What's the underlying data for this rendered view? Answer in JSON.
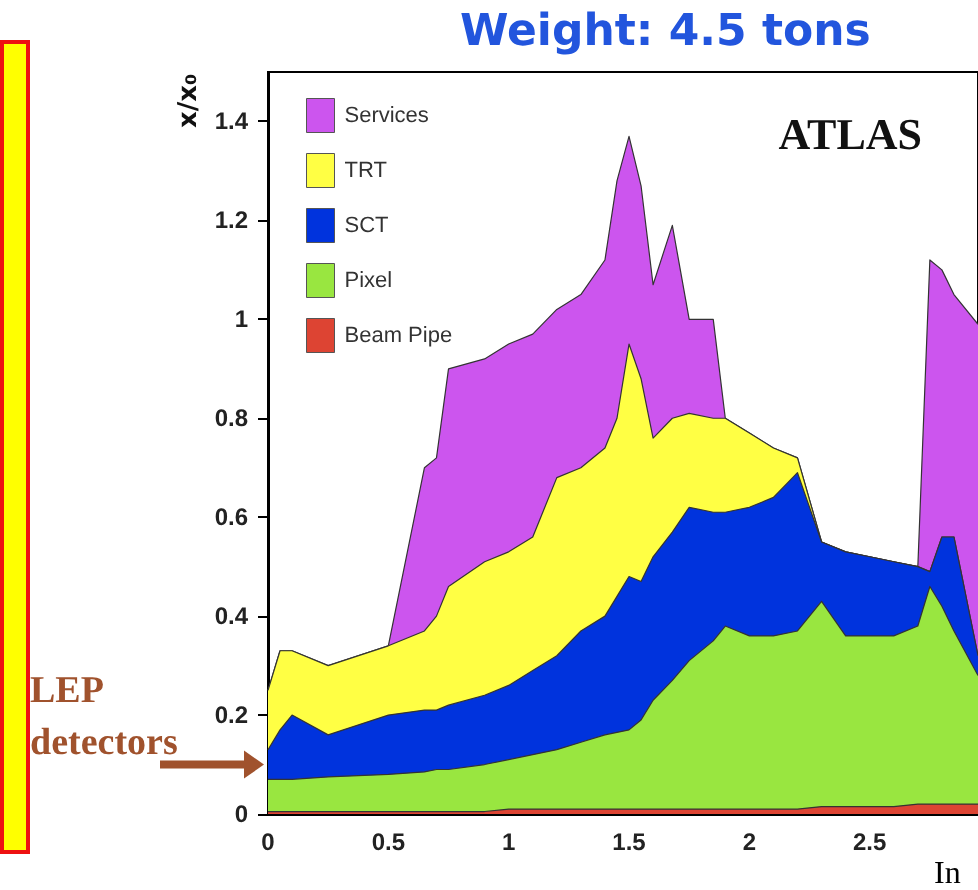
{
  "chart_data": {
    "type": "area",
    "title": "Weight: 4.5 tons",
    "xlabel": "In",
    "ylabel": "x/x₀",
    "annotations": [
      "ATLAS",
      {
        "text": "LEP detectors",
        "x": 0,
        "y": 0.1
      }
    ],
    "stacked": true,
    "legend": "top left",
    "x": [
      0,
      0.05,
      0.1,
      0.25,
      0.5,
      0.65,
      0.7,
      0.75,
      0.9,
      1.0,
      1.1,
      1.2,
      1.3,
      1.4,
      1.45,
      1.5,
      1.55,
      1.6,
      1.68,
      1.75,
      1.85,
      1.9,
      2.0,
      2.1,
      2.2,
      2.3,
      2.4,
      2.5,
      2.6,
      2.7,
      2.75,
      2.8,
      2.85,
      2.95
    ],
    "series": [
      {
        "name": "Beam Pipe",
        "color": "#dd4433",
        "values": [
          0.005,
          0.005,
          0.005,
          0.005,
          0.005,
          0.005,
          0.005,
          0.005,
          0.005,
          0.01,
          0.01,
          0.01,
          0.01,
          0.01,
          0.01,
          0.01,
          0.01,
          0.01,
          0.01,
          0.01,
          0.01,
          0.01,
          0.01,
          0.01,
          0.01,
          0.015,
          0.015,
          0.015,
          0.015,
          0.02,
          0.02,
          0.02,
          0.02,
          0.02
        ]
      },
      {
        "name": "Pixel",
        "color": "#99e640",
        "values": [
          0.065,
          0.065,
          0.065,
          0.07,
          0.075,
          0.08,
          0.085,
          0.085,
          0.095,
          0.1,
          0.11,
          0.12,
          0.135,
          0.15,
          0.155,
          0.16,
          0.18,
          0.22,
          0.26,
          0.3,
          0.34,
          0.37,
          0.35,
          0.35,
          0.36,
          0.415,
          0.345,
          0.345,
          0.345,
          0.36,
          0.44,
          0.4,
          0.35,
          0.26
        ]
      },
      {
        "name": "SCT",
        "color": "#0033dd",
        "values": [
          0.06,
          0.1,
          0.13,
          0.085,
          0.12,
          0.125,
          0.12,
          0.13,
          0.14,
          0.15,
          0.17,
          0.19,
          0.225,
          0.24,
          0.275,
          0.31,
          0.28,
          0.29,
          0.3,
          0.31,
          0.26,
          0.23,
          0.26,
          0.28,
          0.32,
          0.12,
          0.17,
          0.16,
          0.15,
          0.12,
          0.03,
          0.14,
          0.19,
          0.04
        ]
      },
      {
        "name": "TRT",
        "color": "#ffff44",
        "values": [
          0.12,
          0.16,
          0.13,
          0.14,
          0.14,
          0.16,
          0.19,
          0.24,
          0.27,
          0.27,
          0.27,
          0.36,
          0.33,
          0.34,
          0.36,
          0.47,
          0.41,
          0.24,
          0.23,
          0.19,
          0.19,
          0.19,
          0.15,
          0.1,
          0.03,
          0,
          0,
          0,
          0,
          0,
          0,
          0,
          0,
          0
        ]
      },
      {
        "name": "Services",
        "color": "#cc55ee",
        "values": [
          0,
          0,
          0,
          0,
          0,
          0.33,
          0.32,
          0.44,
          0.41,
          0.42,
          0.41,
          0.34,
          0.35,
          0.38,
          0.48,
          0.42,
          0.39,
          0.31,
          0.39,
          0.19,
          0.2,
          0,
          0,
          0,
          0,
          0,
          0,
          0,
          0,
          0,
          0.63,
          0.54,
          0.49,
          0.67
        ]
      }
    ],
    "xlim": [
      0,
      2.95
    ],
    "xticks": [
      0,
      0.5,
      1,
      1.5,
      2,
      2.5
    ],
    "ylim": [
      0,
      1.5
    ],
    "yticks": [
      0,
      0.2,
      0.4,
      0.6,
      0.8,
      1,
      1.2,
      1.4
    ]
  }
}
